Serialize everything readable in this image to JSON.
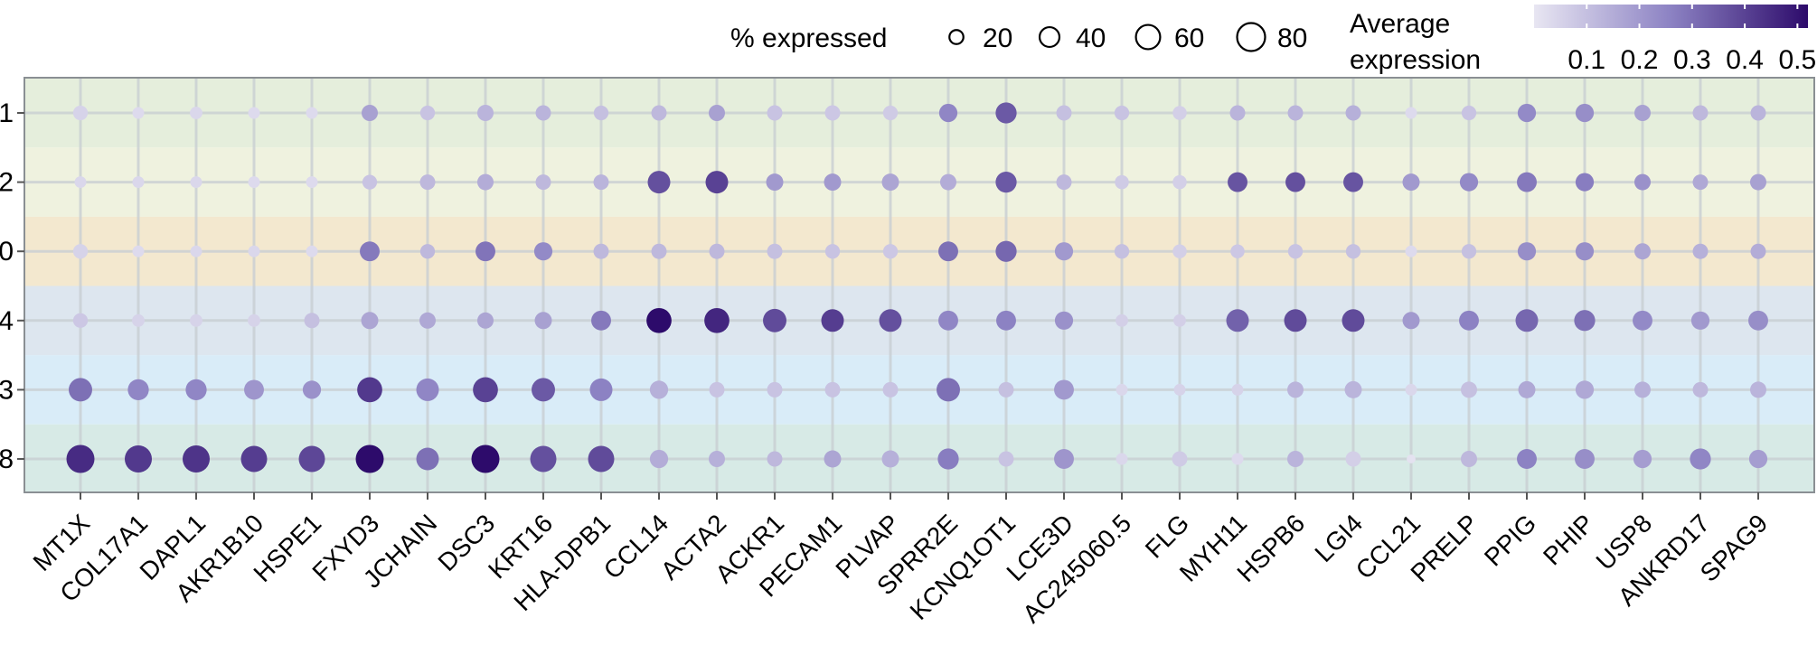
{
  "chart_data": {
    "type": "dotplot",
    "genes": [
      "MT1X",
      "COL17A1",
      "DAPL1",
      "AKR1B10",
      "HSPE1",
      "FXYD3",
      "JCHAIN",
      "DSC3",
      "KRT16",
      "HLA-DPB1",
      "CCL14",
      "ACTA2",
      "ACKR1",
      "PECAM1",
      "PLVAP",
      "SPRR2E",
      "KCNQ1OT1",
      "LCE3D",
      "AC245060.5",
      "FLG",
      "MYH11",
      "HSPB6",
      "LGI4",
      "CCL21",
      "PRELP",
      "PPIG",
      "PHIP",
      "USP8",
      "ANKRD17",
      "SPAG9"
    ],
    "clusters": [
      "1",
      "2",
      "0",
      "4",
      "3",
      "8"
    ],
    "cluster_band_colors": [
      "#e5eedc",
      "#eff2df",
      "#f3e8cf",
      "#dde6ef",
      "#d9ecf8",
      "#d7eae6"
    ],
    "size_legend": {
      "title": "% expressed",
      "values": [
        20,
        40,
        60,
        80
      ]
    },
    "color_legend": {
      "title_line1": "Average",
      "title_line2": "expression",
      "ticks": [
        "0.1",
        "0.2",
        "0.3",
        "0.4",
        "0.5"
      ],
      "range": [
        0.0,
        0.52
      ],
      "color_low": "#e8e6f2",
      "color_high": "#2d0b6b"
    },
    "series": [
      {
        "cluster": "1",
        "pct": [
          22,
          14,
          16,
          14,
          14,
          27,
          22,
          27,
          24,
          22,
          24,
          27,
          24,
          24,
          22,
          34,
          45,
          24,
          22,
          20,
          24,
          24,
          24,
          14,
          22,
          34,
          34,
          27,
          24,
          24
        ],
        "avg": [
          0.05,
          0.03,
          0.04,
          0.03,
          0.03,
          0.18,
          0.09,
          0.13,
          0.13,
          0.1,
          0.12,
          0.18,
          0.09,
          0.08,
          0.07,
          0.25,
          0.35,
          0.1,
          0.09,
          0.06,
          0.13,
          0.13,
          0.14,
          0.03,
          0.09,
          0.24,
          0.23,
          0.18,
          0.12,
          0.13
        ]
      },
      {
        "cluster": "2",
        "pct": [
          14,
          14,
          14,
          14,
          14,
          22,
          24,
          27,
          24,
          24,
          52,
          52,
          30,
          30,
          30,
          27,
          45,
          24,
          20,
          20,
          40,
          40,
          40,
          30,
          34,
          40,
          34,
          27,
          24,
          27
        ],
        "avg": [
          0.04,
          0.04,
          0.04,
          0.03,
          0.03,
          0.09,
          0.12,
          0.15,
          0.12,
          0.13,
          0.37,
          0.4,
          0.2,
          0.2,
          0.17,
          0.15,
          0.35,
          0.12,
          0.07,
          0.06,
          0.36,
          0.37,
          0.36,
          0.2,
          0.24,
          0.28,
          0.27,
          0.22,
          0.16,
          0.18
        ]
      },
      {
        "cluster": "0",
        "pct": [
          22,
          14,
          14,
          14,
          14,
          40,
          22,
          40,
          34,
          24,
          24,
          24,
          24,
          22,
          22,
          40,
          45,
          34,
          22,
          20,
          20,
          22,
          22,
          14,
          22,
          34,
          34,
          27,
          24,
          24
        ],
        "avg": [
          0.05,
          0.03,
          0.04,
          0.04,
          0.03,
          0.28,
          0.12,
          0.29,
          0.24,
          0.12,
          0.12,
          0.12,
          0.1,
          0.09,
          0.08,
          0.3,
          0.32,
          0.2,
          0.1,
          0.06,
          0.08,
          0.09,
          0.1,
          0.03,
          0.1,
          0.23,
          0.23,
          0.17,
          0.14,
          0.15
        ]
      },
      {
        "cluster": "4",
        "pct": [
          22,
          16,
          16,
          16,
          24,
          30,
          27,
          27,
          30,
          40,
          64,
          64,
          56,
          52,
          52,
          40,
          40,
          34,
          16,
          16,
          52,
          52,
          52,
          30,
          40,
          52,
          45,
          40,
          34,
          40
        ],
        "avg": [
          0.08,
          0.05,
          0.05,
          0.05,
          0.1,
          0.17,
          0.16,
          0.17,
          0.18,
          0.28,
          0.52,
          0.46,
          0.38,
          0.41,
          0.37,
          0.25,
          0.26,
          0.22,
          0.06,
          0.06,
          0.33,
          0.38,
          0.38,
          0.2,
          0.26,
          0.32,
          0.3,
          0.24,
          0.2,
          0.23
        ]
      },
      {
        "cluster": "3",
        "pct": [
          56,
          45,
          45,
          40,
          34,
          64,
          52,
          64,
          56,
          52,
          34,
          24,
          24,
          24,
          24,
          56,
          24,
          40,
          14,
          14,
          14,
          27,
          30,
          14,
          27,
          30,
          34,
          27,
          24,
          27
        ],
        "avg": [
          0.3,
          0.25,
          0.25,
          0.21,
          0.22,
          0.42,
          0.25,
          0.4,
          0.35,
          0.26,
          0.14,
          0.09,
          0.09,
          0.09,
          0.09,
          0.3,
          0.1,
          0.2,
          0.04,
          0.05,
          0.05,
          0.13,
          0.13,
          0.04,
          0.1,
          0.16,
          0.16,
          0.14,
          0.12,
          0.13
        ]
      },
      {
        "cluster": "8",
        "pct": [
          80,
          75,
          75,
          70,
          70,
          80,
          52,
          80,
          70,
          70,
          34,
          27,
          24,
          30,
          30,
          45,
          24,
          40,
          14,
          24,
          14,
          27,
          24,
          8,
          27,
          40,
          40,
          34,
          45,
          34
        ],
        "avg": [
          0.45,
          0.42,
          0.43,
          0.41,
          0.39,
          0.52,
          0.3,
          0.54,
          0.37,
          0.38,
          0.15,
          0.14,
          0.12,
          0.17,
          0.14,
          0.27,
          0.09,
          0.21,
          0.04,
          0.07,
          0.03,
          0.13,
          0.06,
          0.01,
          0.12,
          0.26,
          0.23,
          0.19,
          0.25,
          0.19
        ]
      }
    ]
  }
}
